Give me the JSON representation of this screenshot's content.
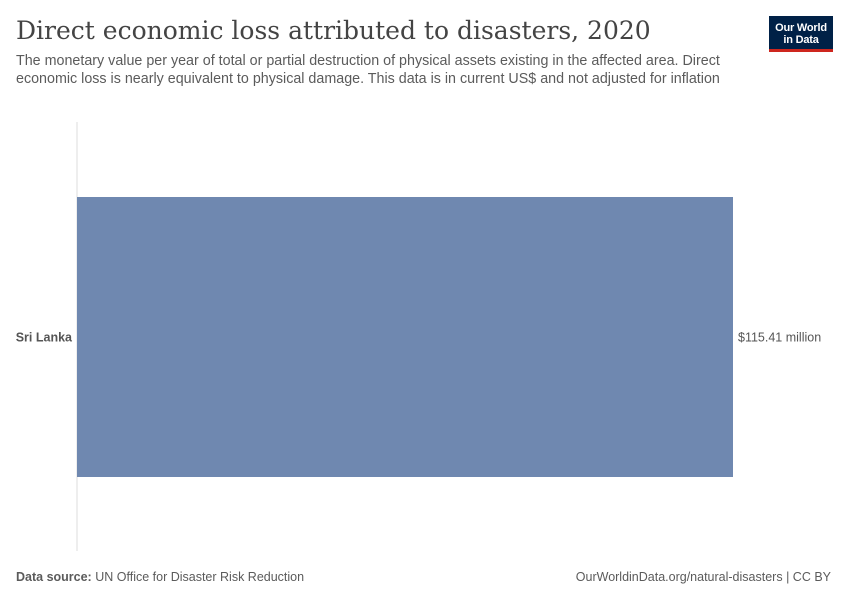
{
  "header": {
    "title": "Direct economic loss attributed to disasters, 2020",
    "subtitle": "The monetary value per year of total or partial destruction of physical assets existing in the affected area. Direct economic loss is nearly equivalent to physical damage. This data is in current US$ and not adjusted for inflation"
  },
  "logo": {
    "line1": "Our World",
    "line2": "in Data"
  },
  "footer": {
    "source_label": "Data source:",
    "source_value": "UN Office for Disaster Risk Reduction",
    "link": "OurWorldinData.org/natural-disasters",
    "license": " | CC BY"
  },
  "colors": {
    "bar": "#6f88b0",
    "axis": "#dddddd",
    "logo_bg": "#002147",
    "logo_accent": "#ce261e"
  },
  "chart_data": {
    "type": "bar",
    "orientation": "horizontal",
    "title": "Direct economic loss attributed to disasters, 2020",
    "categories": [
      "Sri Lanka"
    ],
    "values": [
      115410000
    ],
    "value_labels": [
      "$115.41 million"
    ],
    "unit": "current US$",
    "xlim": [
      0,
      115410000
    ],
    "grid": false,
    "legend": "none"
  }
}
